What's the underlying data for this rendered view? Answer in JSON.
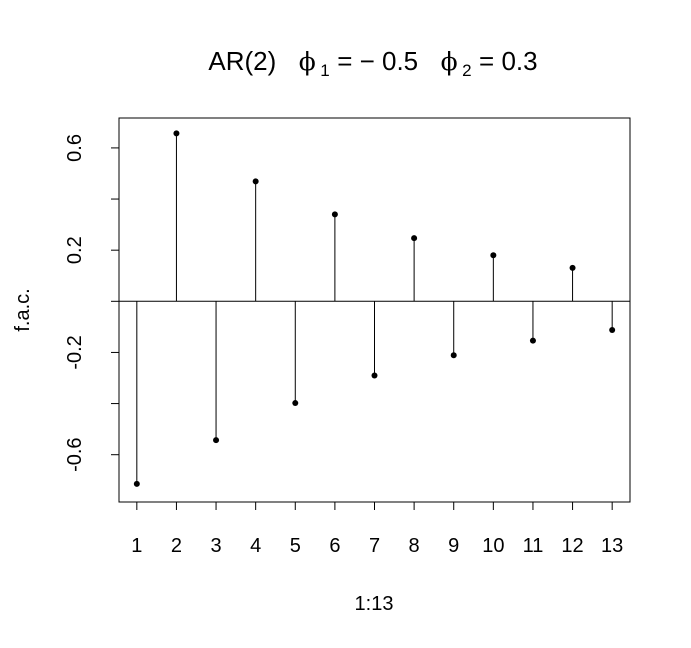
{
  "chart_data": {
    "type": "stem",
    "title": {
      "model": "AR(2)",
      "phi_symbol": "ϕ",
      "phi1_sub": "1",
      "phi1_eq": "= − 0.5",
      "phi2_sub": "2",
      "phi2_eq": "= 0.3"
    },
    "xlabel": "1:13",
    "ylabel": "f.a.c.",
    "x": [
      1,
      2,
      3,
      4,
      5,
      6,
      7,
      8,
      9,
      10,
      11,
      12,
      13
    ],
    "values": [
      -0.714,
      0.657,
      -0.543,
      0.469,
      -0.398,
      0.34,
      -0.29,
      0.247,
      -0.211,
      0.18,
      -0.154,
      0.131,
      -0.112
    ],
    "xlim": [
      0.55,
      13.45
    ],
    "ylim": [
      -0.785,
      0.717
    ],
    "x_ticks": [
      "1",
      "2",
      "3",
      "4",
      "5",
      "6",
      "7",
      "8",
      "9",
      "10",
      "11",
      "12",
      "13"
    ],
    "y_ticks": [
      {
        "value": -0.6,
        "label": "-0.6",
        "show_label": true
      },
      {
        "value": -0.4,
        "label": "-0.4",
        "show_label": false
      },
      {
        "value": -0.2,
        "label": "-0.2",
        "show_label": true
      },
      {
        "value": 0.0,
        "label": "0.0",
        "show_label": false
      },
      {
        "value": 0.2,
        "label": "0.2",
        "show_label": true
      },
      {
        "value": 0.4,
        "label": "0.4",
        "show_label": false
      },
      {
        "value": 0.6,
        "label": "0.6",
        "show_label": true
      }
    ],
    "reference_line": 0,
    "grid": false,
    "colors": {
      "marks": "#000000",
      "background": "#ffffff"
    }
  }
}
